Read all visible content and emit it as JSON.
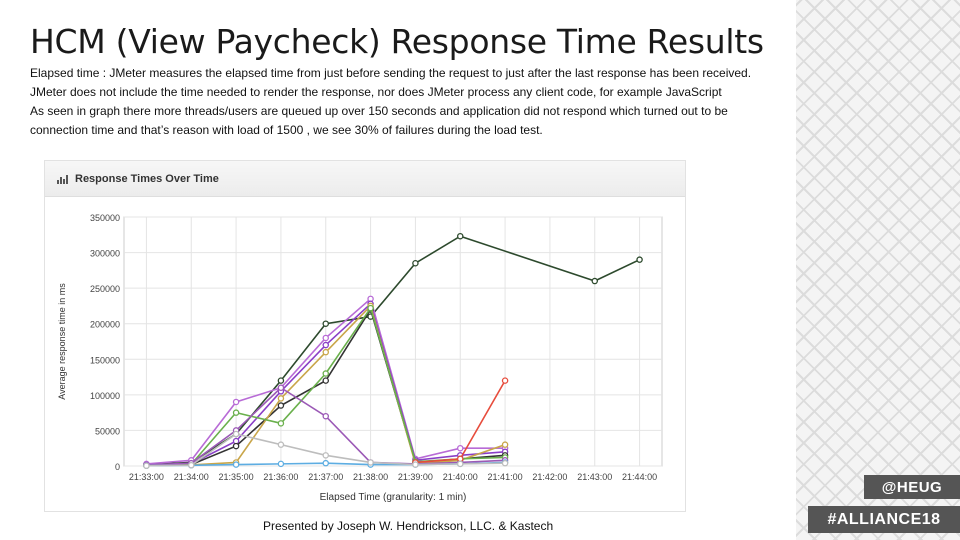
{
  "slide": {
    "title": "HCM (View Paycheck) Response Time Results",
    "paragraph1": "Elapsed time : JMeter measures the elapsed time from just before sending the request to just after the last response has been received. JMeter does not include the time needed to render the response, nor does JMeter process any client code, for example JavaScript",
    "paragraph2": "As seen in graph there more threads/users are queued up over 150 seconds and application did not respond which turned out to be connection time and that’s reason with load of 1500 , we see 30% of failures during the load test.",
    "footer": "Presented by Joseph W. Hendrickson, LLC. & Kastech",
    "tag_heug": "@HEUG",
    "tag_alliance": "#ALLIANCE18"
  },
  "chart_data": {
    "type": "line",
    "panel_title": "Response Times Over Time",
    "xlabel": "Elapsed Time (granularity: 1 min)",
    "ylabel": "Average response time in ms",
    "x": [
      "21:33:00",
      "21:34:00",
      "21:35:00",
      "21:36:00",
      "21:37:00",
      "21:38:00",
      "21:39:00",
      "21:40:00",
      "21:41:00",
      "21:42:00",
      "21:43:00",
      "21:44:00"
    ],
    "ylim": [
      0,
      350000
    ],
    "yticks": [
      "350000",
      "300000",
      "250000",
      "200000",
      "150000",
      "100000",
      "50000",
      "0"
    ],
    "grid": true,
    "series": [
      {
        "color": "#2d4a2d",
        "values": [
          2000,
          5000,
          45000,
          120000,
          200000,
          210000,
          285000,
          323000,
          null,
          null,
          260000,
          290000
        ]
      },
      {
        "color": "#b86bd6",
        "values": [
          3000,
          8000,
          90000,
          110000,
          180000,
          235000,
          10000,
          25000,
          25000,
          null,
          null,
          null
        ]
      },
      {
        "color": "#8a3fc7",
        "values": [
          1000,
          3000,
          35000,
          105000,
          170000,
          228000,
          8000,
          15000,
          20000,
          null,
          null,
          null
        ]
      },
      {
        "color": "#333333",
        "values": [
          1000,
          2000,
          28000,
          85000,
          120000,
          220000,
          5000,
          10000,
          15000,
          null,
          null,
          null
        ]
      },
      {
        "color": "#c9a64a",
        "values": [
          500,
          1500,
          5000,
          95000,
          160000,
          225000,
          3000,
          8000,
          30000,
          null,
          null,
          null
        ]
      },
      {
        "color": "#6ab04c",
        "values": [
          800,
          2500,
          75000,
          60000,
          130000,
          222000,
          6000,
          10000,
          12000,
          null,
          null,
          null
        ]
      },
      {
        "color": "#9b59b6",
        "values": [
          1500,
          4000,
          50000,
          110000,
          70000,
          5000,
          3000,
          5000,
          8000,
          null,
          null,
          null
        ]
      },
      {
        "color": "#e74c3c",
        "values": [
          null,
          null,
          null,
          null,
          null,
          null,
          5000,
          10000,
          120000,
          null,
          null,
          null
        ]
      },
      {
        "color": "#5dade2",
        "values": [
          500,
          1000,
          2000,
          3000,
          4000,
          2000,
          2000,
          3000,
          5000,
          null,
          null,
          null
        ]
      },
      {
        "color": "#bdbdbd",
        "values": [
          400,
          1200,
          45000,
          30000,
          15000,
          5000,
          2000,
          3000,
          4000,
          null,
          null,
          null
        ]
      }
    ]
  }
}
